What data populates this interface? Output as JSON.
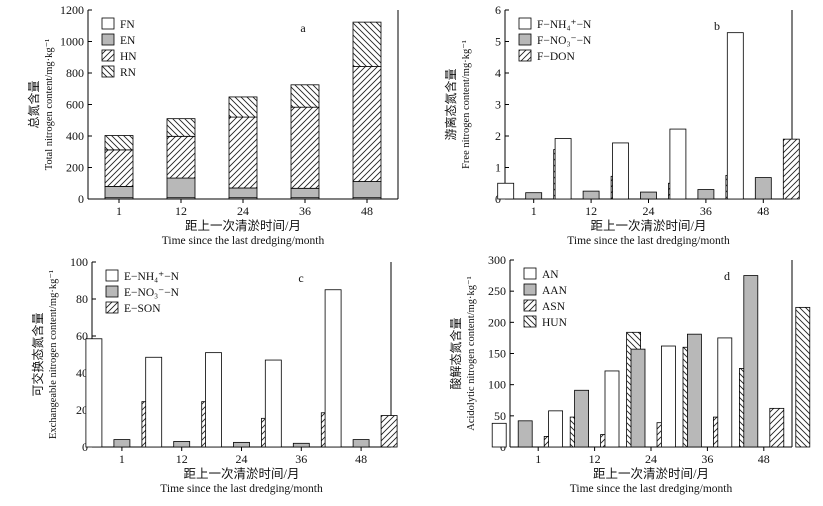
{
  "chart_data": [
    {
      "type": "bar",
      "stacked": true,
      "panel_letter": "a",
      "categories": [
        "1",
        "12",
        "24",
        "36",
        "48"
      ],
      "ylim": [
        0,
        1200
      ],
      "yticks": [
        0,
        200,
        400,
        600,
        800,
        1000,
        1200
      ],
      "ylabel_cn": "总氮含量",
      "ylabel": "Total nitrogen content/mg·kg⁻¹",
      "xlabel_cn": "距上一次清淤时间/月",
      "xlabel": "Time since the last dredging/month",
      "legend_position": "top-left",
      "series": [
        {
          "name": "FN",
          "fill": "white",
          "values": [
            8,
            8,
            8,
            8,
            8
          ]
        },
        {
          "name": "EN",
          "fill": "gray",
          "values": [
            72,
            125,
            62,
            60,
            103
          ]
        },
        {
          "name": "HN",
          "fill": "hatch-fwd",
          "values": [
            232,
            265,
            450,
            515,
            730
          ]
        },
        {
          "name": "RN",
          "fill": "hatch-back",
          "values": [
            91,
            112,
            128,
            142,
            282
          ]
        }
      ]
    },
    {
      "type": "bar",
      "panel_letter": "b",
      "categories": [
        "1",
        "12",
        "24",
        "36",
        "48"
      ],
      "ylim": [
        0,
        6
      ],
      "yticks": [
        0,
        1,
        2,
        3,
        4,
        5,
        6
      ],
      "ylabel_cn": "游离态氮含量",
      "ylabel": "Free nitrogen content/mg·kg⁻¹",
      "xlabel_cn": "距上一次清淤时间/月",
      "xlabel": "Time since the last dredging/month",
      "legend_position": "top-left",
      "series": [
        {
          "name": "F−NH₄⁺−N",
          "fill": "white",
          "values": [
            0.5,
            1.92,
            1.78,
            2.22,
            5.28
          ]
        },
        {
          "name": "F−NO₃⁻−N",
          "fill": "gray",
          "values": [
            0.2,
            0.25,
            0.22,
            0.3,
            0.68
          ]
        },
        {
          "name": "F−DON",
          "fill": "hatch-fwd",
          "values": [
            1.57,
            0.72,
            0.5,
            0.75,
            1.9
          ]
        }
      ]
    },
    {
      "type": "bar",
      "panel_letter": "c",
      "categories": [
        "1",
        "12",
        "24",
        "36",
        "48"
      ],
      "ylim": [
        0,
        100
      ],
      "yticks": [
        0,
        20,
        40,
        60,
        80,
        100
      ],
      "ylabel_cn": "可交换态氮含量",
      "ylabel": "Exchangeable nitrogen content/mg·kg⁻¹",
      "xlabel_cn": "距上一次清淤时间/月",
      "xlabel": "Time since the last dredging/month",
      "legend_position": "top-left",
      "series": [
        {
          "name": "E−NH₄⁺−N",
          "fill": "white",
          "values": [
            58.5,
            48.5,
            51,
            47,
            85
          ]
        },
        {
          "name": "E−NO₃⁻−N",
          "fill": "gray",
          "values": [
            4,
            3,
            2.5,
            2,
            4
          ]
        },
        {
          "name": "E−SON",
          "fill": "hatch-fwd",
          "values": [
            24.5,
            24.5,
            15.5,
            18.5,
            17
          ]
        }
      ]
    },
    {
      "type": "bar",
      "panel_letter": "d",
      "categories": [
        "1",
        "12",
        "24",
        "36",
        "48"
      ],
      "ylim": [
        0,
        300
      ],
      "yticks": [
        0,
        50,
        100,
        150,
        200,
        250,
        300
      ],
      "ylabel_cn": "酸解态氮含量",
      "ylabel": "Acidolytic nitrogen content/mg·kg⁻¹",
      "xlabel_cn": "距上一次清淤时间/月",
      "xlabel": "Time since the last dredging/month",
      "legend_position": "top-left",
      "series": [
        {
          "name": "AN",
          "fill": "white",
          "values": [
            38,
            58,
            122,
            162,
            175
          ]
        },
        {
          "name": "AAN",
          "fill": "gray",
          "values": [
            42,
            91,
            157,
            181,
            275
          ]
        },
        {
          "name": "ASN",
          "fill": "hatch-fwd",
          "values": [
            17,
            20,
            39,
            48,
            62
          ]
        },
        {
          "name": "HUN",
          "fill": "hatch-back",
          "values": [
            48,
            184,
            160,
            126,
            224
          ]
        }
      ]
    }
  ]
}
